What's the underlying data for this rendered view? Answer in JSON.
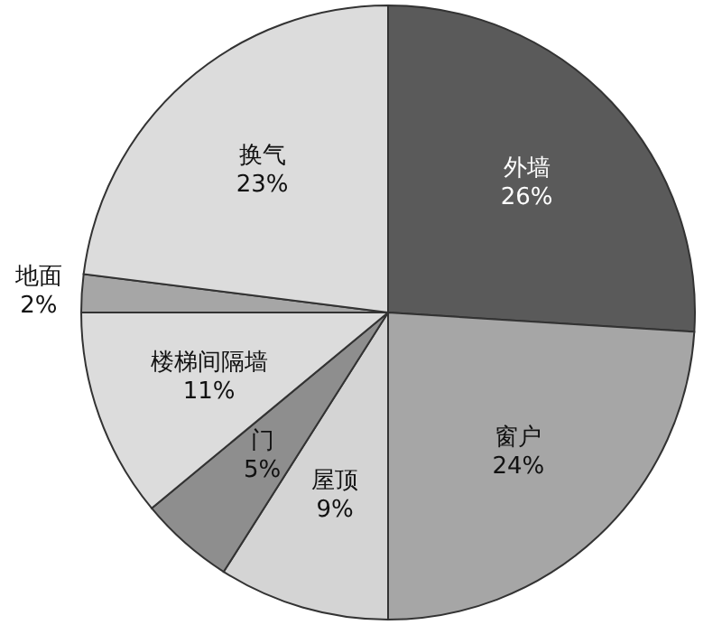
{
  "chart_data": {
    "type": "pie",
    "categories": [
      "外墙",
      "窗户",
      "屋顶",
      "门",
      "楼梯间隔墙",
      "地面",
      "换气"
    ],
    "values": [
      26,
      24,
      9,
      5,
      11,
      2,
      23
    ],
    "value_labels": [
      "26%",
      "24%",
      "9%",
      "5%",
      "11%",
      "2%",
      "23%"
    ],
    "colors": [
      "#5a5a5a",
      "#a6a6a6",
      "#d4d4d4",
      "#8e8e8e",
      "#dcdcdc",
      "#a6a6a6",
      "#dcdcdc"
    ]
  }
}
